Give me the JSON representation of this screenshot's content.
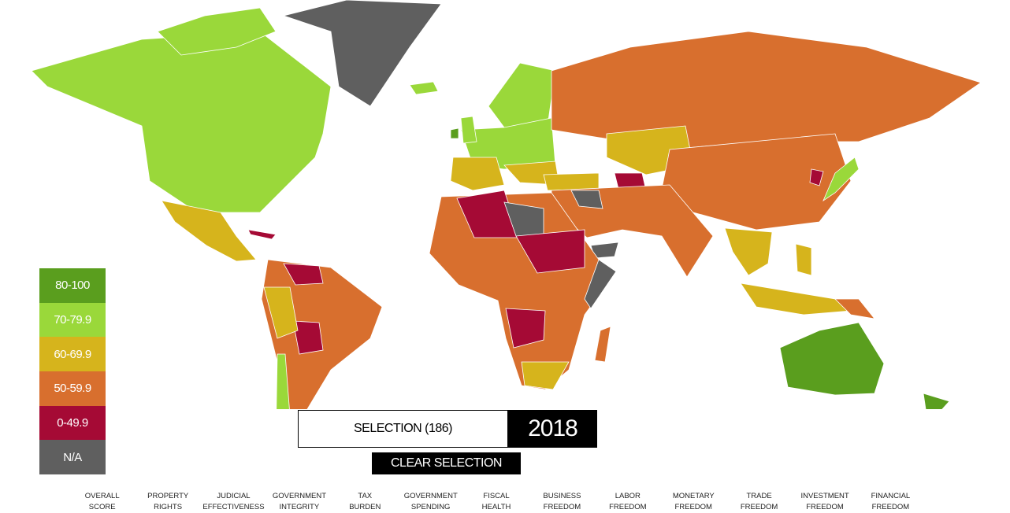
{
  "legend": [
    {
      "label": "80-100",
      "color": "#5a9e1e"
    },
    {
      "label": "70-79.9",
      "color": "#9ad83a"
    },
    {
      "label": "60-69.9",
      "color": "#d6b41c"
    },
    {
      "label": "50-59.9",
      "color": "#d86f2e"
    },
    {
      "label": "0-49.9",
      "color": "#a50a35"
    },
    {
      "label": "N/A",
      "color": "#5f5f5f"
    }
  ],
  "selection": "SELECTION (186)",
  "year": "2018",
  "clear_button": "CLEAR SELECTION",
  "menu": [
    "OVERALL SCORE",
    "PROPERTY RIGHTS",
    "JUDICIAL EFFECTIVENESS",
    "GOVERNMENT INTEGRITY",
    "TAX BURDEN",
    "GOVERNMENT SPENDING",
    "FISCAL HEALTH",
    "BUSINESS FREEDOM",
    "LABOR FREEDOM",
    "MONETARY FREEDOM",
    "TRADE FREEDOM",
    "INVESTMENT FREEDOM",
    "FINANCIAL FREEDOM"
  ]
}
